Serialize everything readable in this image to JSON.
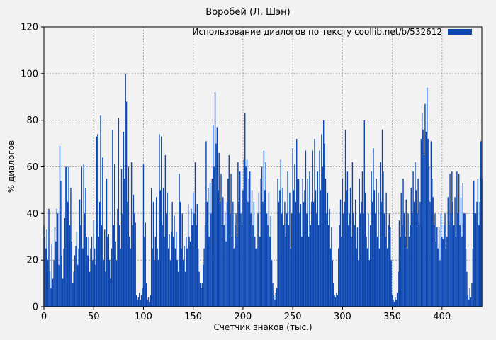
{
  "figure": {
    "background": "#f2f2f2",
    "bar_color": "#0b46b1",
    "grid_color": "#a9a9a9",
    "axis_color": "#000000"
  },
  "chart_data": {
    "type": "bar",
    "style": "impulses",
    "title": "Воробей (Л. Шэн)",
    "xlabel": "Счетчик знаков (тыс.)",
    "ylabel": "% диалогов",
    "legend": [
      {
        "label": "Использование диалогов по тексту  coollib.net/b/532612",
        "color": "#0b46b1"
      }
    ],
    "legend_position": "top-right-inside",
    "xlim": [
      0,
      440
    ],
    "ylim": [
      0,
      120
    ],
    "x_ticks": [
      0,
      50,
      100,
      150,
      200,
      250,
      300,
      350,
      400
    ],
    "y_ticks": [
      0,
      20,
      40,
      60,
      80,
      100,
      120
    ],
    "grid": true,
    "x_start": 0,
    "x_step": 1,
    "values": [
      35,
      30,
      25,
      33,
      20,
      42,
      15,
      8,
      27,
      12,
      20,
      34,
      28,
      42,
      40,
      18,
      69,
      54,
      22,
      12,
      25,
      38,
      60,
      60,
      45,
      60,
      35,
      51,
      28,
      10,
      15,
      22,
      26,
      32,
      18,
      25,
      46,
      35,
      60,
      25,
      61,
      40,
      51,
      30,
      22,
      30,
      15,
      25,
      30,
      20,
      37,
      25,
      18,
      73,
      74,
      30,
      45,
      82,
      35,
      64,
      20,
      33,
      15,
      55,
      30,
      31,
      20,
      12,
      25,
      76,
      35,
      61,
      28,
      20,
      42,
      81,
      35,
      25,
      59,
      40,
      75,
      55,
      100,
      88,
      45,
      60,
      30,
      25,
      62,
      35,
      48,
      40,
      36,
      5,
      3,
      4,
      6,
      3,
      5,
      8,
      61,
      30,
      36,
      10,
      3,
      4,
      2,
      5,
      51,
      25,
      45,
      20,
      30,
      47,
      25,
      20,
      74,
      50,
      73,
      35,
      51,
      30,
      65,
      40,
      49,
      25,
      31,
      20,
      32,
      45,
      30,
      39,
      25,
      32,
      20,
      15,
      57,
      45,
      25,
      40,
      20,
      26,
      15,
      30,
      25,
      44,
      30,
      28,
      42,
      35,
      49,
      40,
      62,
      35,
      44,
      25,
      15,
      10,
      8,
      10,
      18,
      25,
      35,
      71,
      45,
      51,
      30,
      53,
      40,
      55,
      78,
      60,
      92,
      70,
      77,
      50,
      66,
      45,
      57,
      35,
      47,
      35,
      40,
      28,
      45,
      55,
      65,
      40,
      57,
      30,
      45,
      25,
      35,
      40,
      30,
      62,
      45,
      58,
      40,
      35,
      50,
      63,
      83,
      60,
      63,
      45,
      55,
      58,
      40,
      50,
      35,
      45,
      30,
      25,
      25,
      40,
      49,
      30,
      55,
      60,
      45,
      67,
      50,
      62,
      40,
      35,
      49,
      30,
      39,
      20,
      10,
      5,
      3,
      6,
      8,
      55,
      45,
      50,
      63,
      40,
      51,
      35,
      45,
      30,
      40,
      58,
      35,
      49,
      25,
      40,
      68,
      50,
      61,
      45,
      72,
      55,
      55,
      40,
      44,
      30,
      55,
      45,
      50,
      67,
      40,
      55,
      30,
      58,
      35,
      45,
      67,
      45,
      72,
      50,
      40,
      58,
      35,
      67,
      50,
      74,
      60,
      80,
      70,
      55,
      40,
      49,
      35,
      42,
      25,
      34,
      20,
      10,
      5,
      4,
      6,
      5,
      25,
      35,
      46,
      30,
      55,
      40,
      45,
      76,
      50,
      58,
      35,
      40,
      51,
      30,
      62,
      40,
      35,
      46,
      25,
      34,
      20,
      55,
      40,
      45,
      58,
      40,
      80,
      49,
      30,
      25,
      40,
      20,
      35,
      58,
      45,
      68,
      50,
      40,
      55,
      30,
      49,
      25,
      62,
      45,
      76,
      58,
      40,
      30,
      49,
      25,
      35,
      40,
      34,
      20,
      5,
      3,
      2,
      4,
      3,
      6,
      15,
      37,
      30,
      49,
      35,
      55,
      40,
      30,
      46,
      25,
      40,
      30,
      35,
      51,
      40,
      58,
      45,
      62,
      50,
      40,
      55,
      35,
      45,
      72,
      83,
      76,
      65,
      87,
      75,
      94,
      72,
      60,
      45,
      71,
      55,
      47,
      35,
      40,
      28,
      34,
      25,
      34,
      20,
      40,
      30,
      29,
      35,
      40,
      25,
      30,
      47,
      35,
      57,
      40,
      58,
      45,
      35,
      47,
      30,
      58,
      40,
      57,
      35,
      47,
      30,
      53,
      40,
      40,
      25,
      15,
      5,
      3,
      8,
      4,
      10,
      25,
      54,
      40,
      40,
      45,
      55,
      35,
      45,
      71,
      55
    ]
  }
}
